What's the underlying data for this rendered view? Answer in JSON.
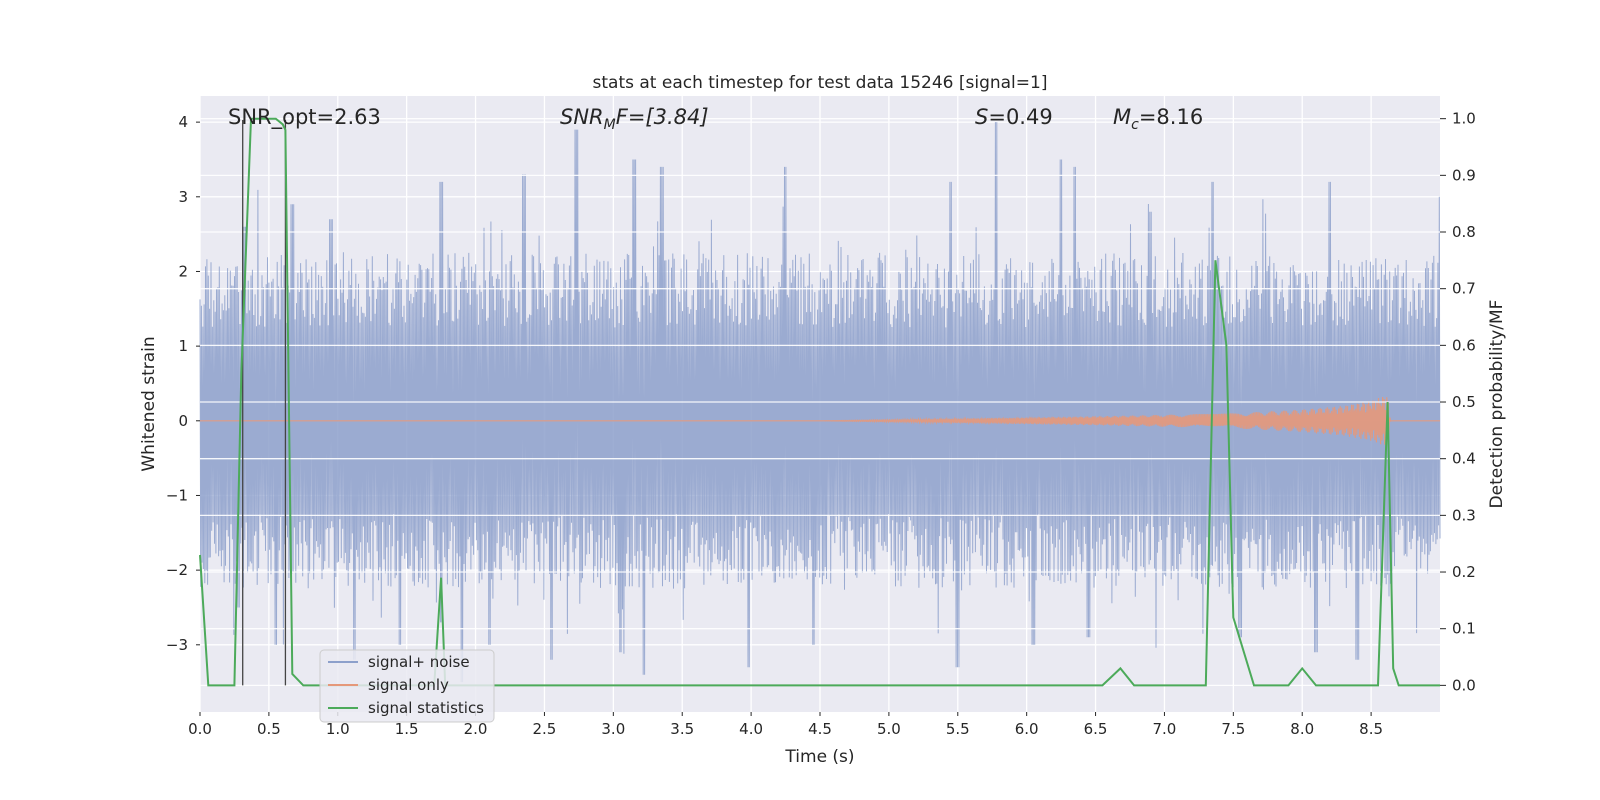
{
  "chart_data": {
    "type": "line",
    "title": "stats at each timestep for test data 15246 [signal=1]",
    "xlabel": "Time (s)",
    "ylabel": "Whitened strain",
    "ylabel_right": "Detection probability/MF",
    "xlim": [
      0.0,
      9.0
    ],
    "ylim": [
      -3.9,
      4.35
    ],
    "ylim_right": [
      -0.047,
      1.04
    ],
    "xticks": [
      "0.0",
      "0.5",
      "1.0",
      "1.5",
      "2.0",
      "2.5",
      "3.0",
      "3.5",
      "4.0",
      "4.5",
      "5.0",
      "5.5",
      "6.0",
      "6.5",
      "7.0",
      "7.5",
      "8.0",
      "8.5"
    ],
    "yticks": [
      "4",
      "3",
      "2",
      "1",
      "0",
      "−1",
      "−2",
      "−3"
    ],
    "yticks_right": [
      "1.0",
      "0.9",
      "0.8",
      "0.7",
      "0.6",
      "0.5",
      "0.4",
      "0.3",
      "0.2",
      "0.1",
      "0.0"
    ],
    "grid": true,
    "legend_position": "lower-left",
    "annotations": {
      "snr_opt": "SNR_opt=2.63",
      "snr_mf_main": "SNR",
      "snr_mf_sub": "M",
      "snr_mf_tail": "F=[3.84]",
      "s_main": "S",
      "s_tail": "=0.49",
      "mc_main": "M",
      "mc_sub": "c",
      "mc_tail": "=8.16"
    },
    "vlines_x": [
      0.31,
      0.62
    ],
    "series": [
      {
        "name": "signal+ noise",
        "color": "#8da0cb",
        "description_points": "dense noisy strain, amplitude about 1.5 to 2.5 with spikes up to about 3.9",
        "peaks": [
          [
            0.32,
            2.6
          ],
          [
            0.67,
            2.9
          ],
          [
            0.95,
            2.7
          ],
          [
            1.75,
            3.2
          ],
          [
            2.35,
            3.3
          ],
          [
            2.73,
            3.9
          ],
          [
            3.15,
            3.5
          ],
          [
            3.35,
            3.4
          ],
          [
            4.25,
            3.4
          ],
          [
            5.45,
            3.2
          ],
          [
            5.78,
            4.0
          ],
          [
            6.25,
            3.5
          ],
          [
            6.35,
            3.4
          ],
          [
            6.9,
            2.8
          ],
          [
            7.35,
            3.2
          ],
          [
            8.2,
            3.2
          ],
          [
            9.0,
            3.0
          ]
        ],
        "troughs": [
          [
            0.28,
            -2.5
          ],
          [
            0.55,
            -3.0
          ],
          [
            1.12,
            -3.2
          ],
          [
            1.45,
            -3.0
          ],
          [
            1.75,
            -2.7
          ],
          [
            1.9,
            -3.5
          ],
          [
            2.1,
            -3.0
          ],
          [
            2.55,
            -3.2
          ],
          [
            3.05,
            -3.1
          ],
          [
            3.22,
            -3.4
          ],
          [
            3.98,
            -3.3
          ],
          [
            4.45,
            -3.0
          ],
          [
            5.5,
            -3.3
          ],
          [
            6.05,
            -3.0
          ],
          [
            6.45,
            -2.9
          ],
          [
            7.55,
            -2.9
          ],
          [
            8.1,
            -3.1
          ],
          [
            8.4,
            -3.2
          ]
        ]
      },
      {
        "name": "signal only",
        "color": "#e5987a",
        "description_points": "chirp waveform, envelope grows from 0 near t=4.5 to about 0.35 near t=8.65, then ends",
        "envelope": [
          [
            0.0,
            0.0
          ],
          [
            4.5,
            0.0
          ],
          [
            5.5,
            0.03
          ],
          [
            6.5,
            0.06
          ],
          [
            7.0,
            0.08
          ],
          [
            7.5,
            0.1
          ],
          [
            8.0,
            0.15
          ],
          [
            8.3,
            0.2
          ],
          [
            8.5,
            0.27
          ],
          [
            8.62,
            0.35
          ],
          [
            8.64,
            0.0
          ],
          [
            9.0,
            0.0
          ]
        ]
      },
      {
        "name": "signal statistics",
        "color": "#4caa5a",
        "axis": "right",
        "x": [
          0.0,
          0.06,
          0.25,
          0.3,
          0.37,
          0.55,
          0.6,
          0.62,
          0.67,
          0.75,
          1.5,
          1.7,
          1.75,
          1.78,
          1.85,
          2.2,
          2.3,
          5.9,
          6.0,
          6.55,
          6.68,
          6.78,
          7.3,
          7.37,
          7.45,
          7.5,
          7.65,
          7.9,
          8.0,
          8.1,
          8.55,
          8.62,
          8.66,
          8.7,
          9.0
        ],
        "values": [
          0.23,
          0.0,
          0.0,
          0.55,
          1.0,
          1.0,
          0.99,
          0.98,
          0.02,
          0.0,
          0.0,
          0.0,
          0.19,
          0.0,
          0.0,
          0.0,
          0.0,
          0.0,
          0.0,
          0.0,
          0.03,
          0.0,
          0.0,
          0.75,
          0.6,
          0.12,
          0.0,
          0.0,
          0.03,
          0.0,
          0.0,
          0.5,
          0.03,
          0.0,
          0.0
        ]
      }
    ]
  }
}
